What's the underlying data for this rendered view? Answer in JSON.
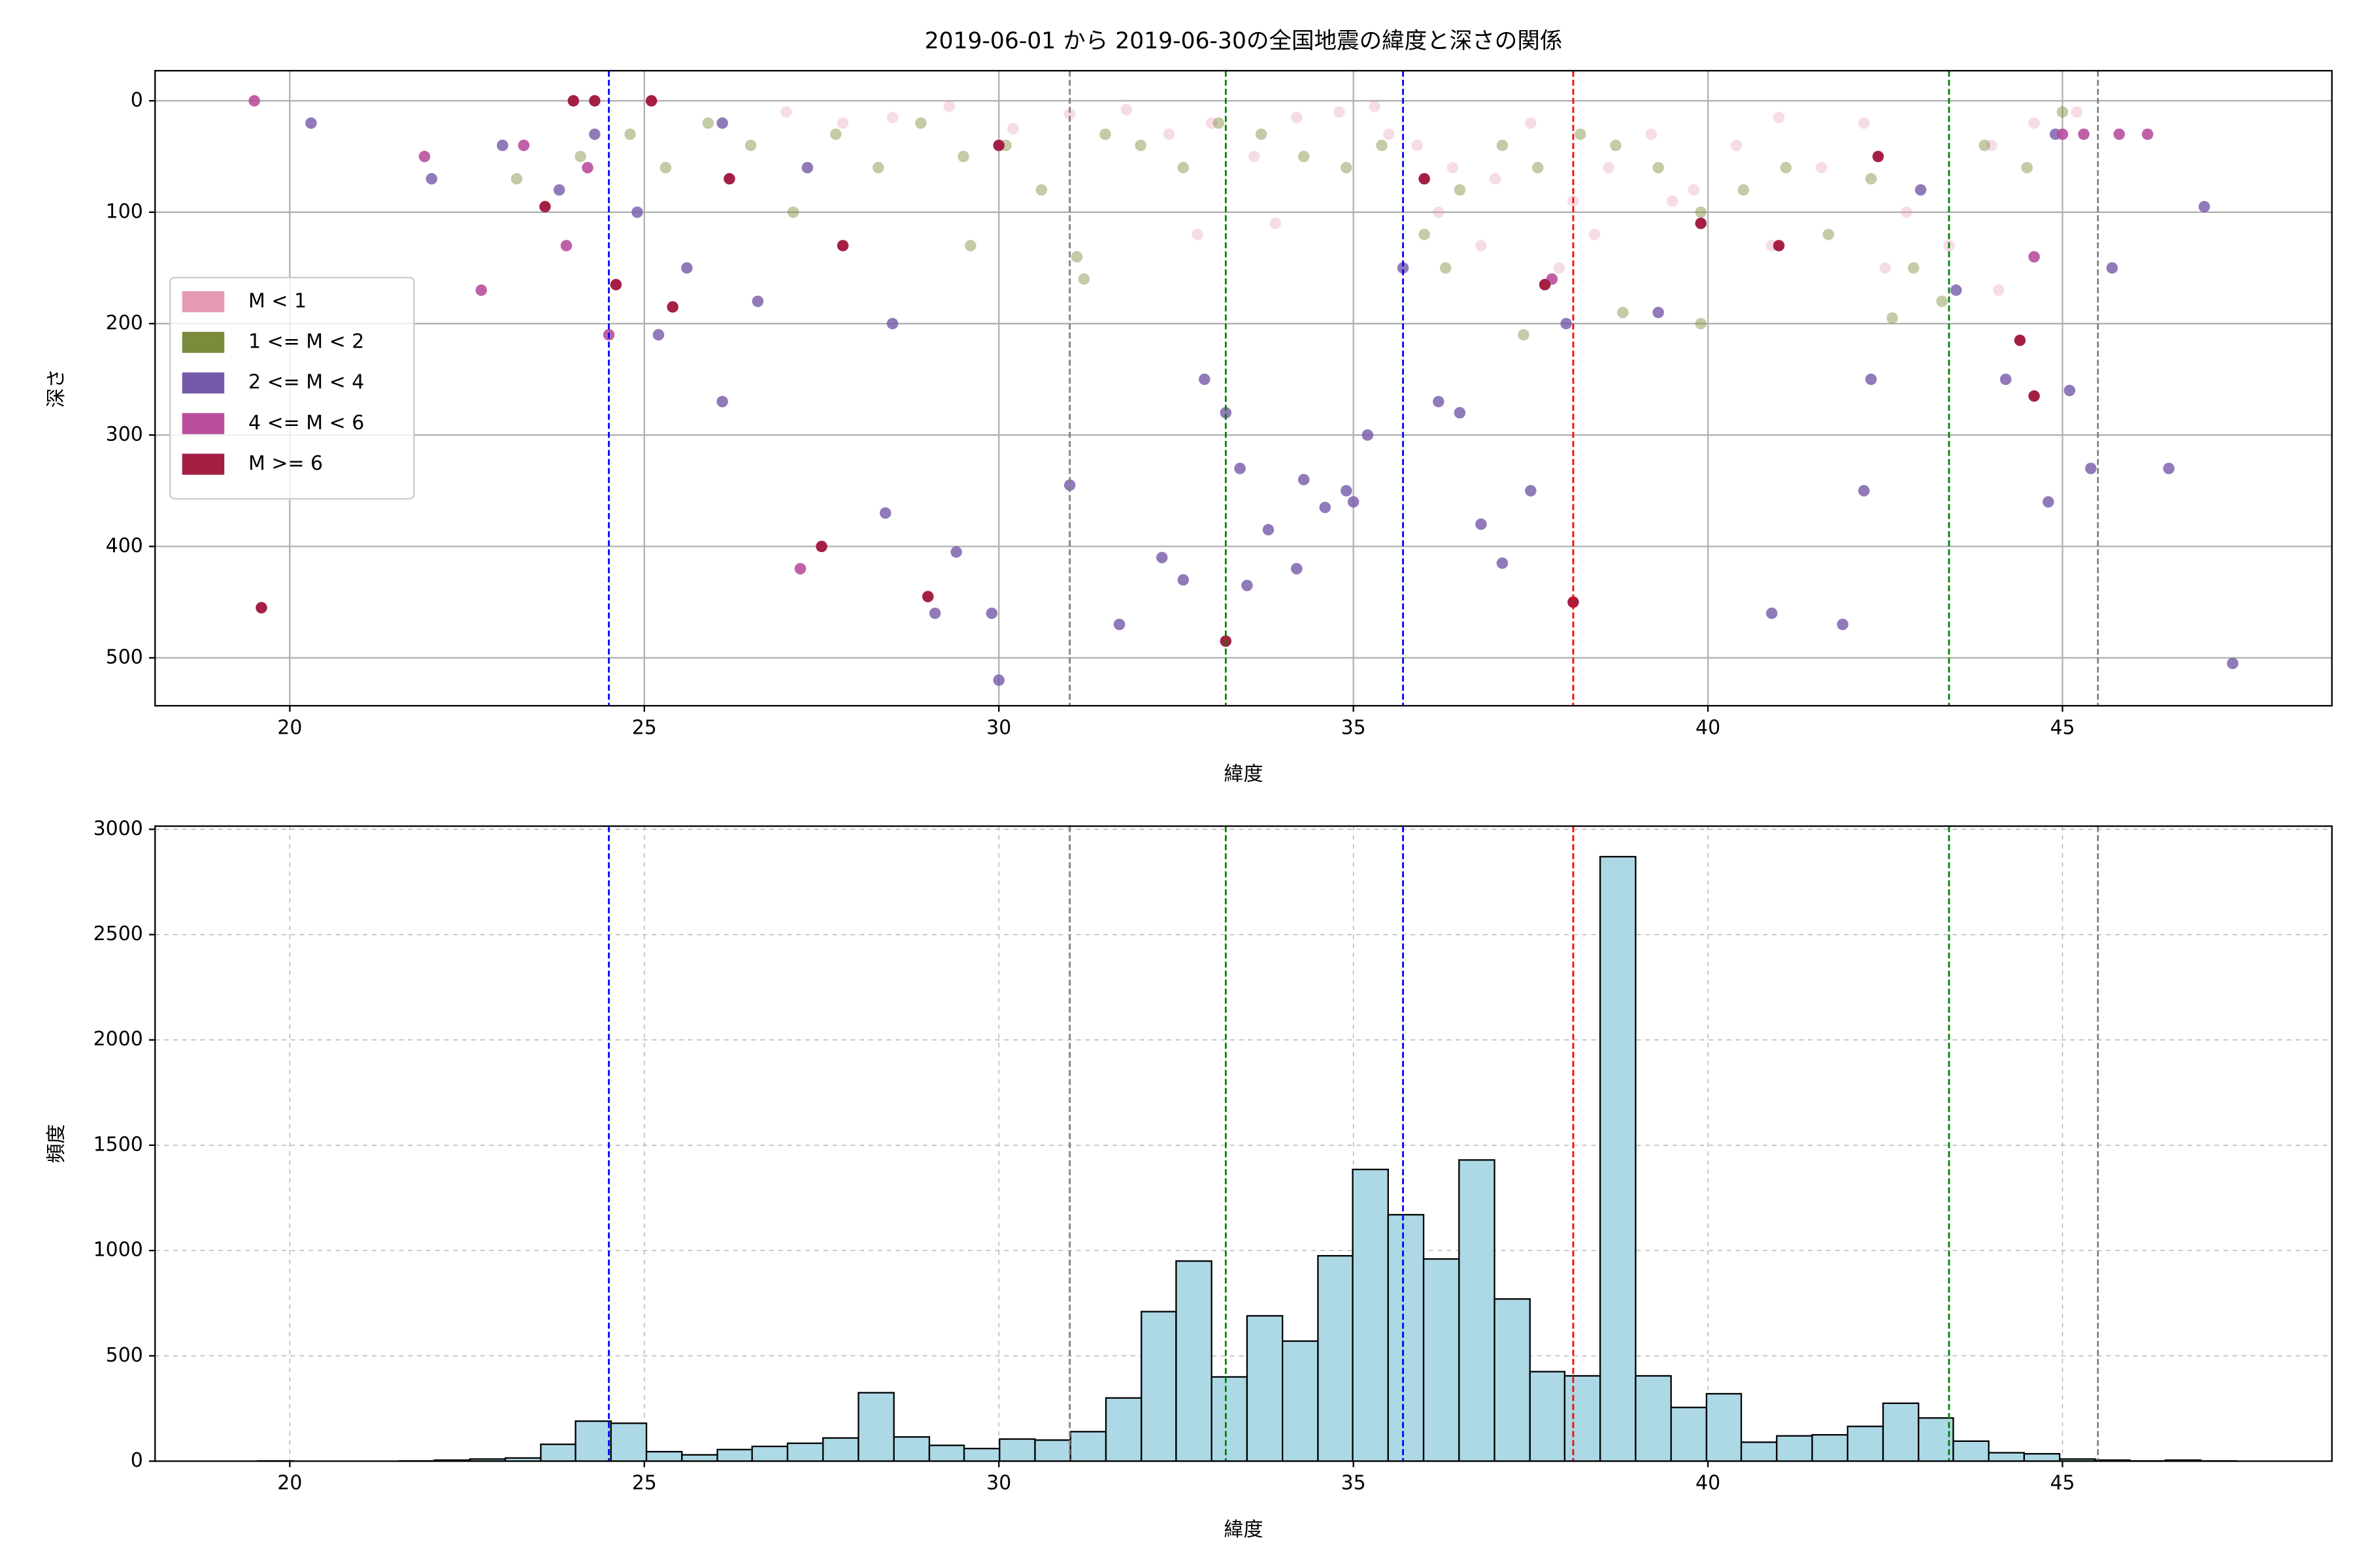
{
  "chart_data": [
    {
      "type": "scatter",
      "title": "2019-06-01 から 2019-06-30の全国地震の緯度と深さの関係",
      "xlabel": "緯度",
      "ylabel": "深さ",
      "xlim": [
        18.1,
        48.8
      ],
      "ylim": [
        543,
        -27
      ],
      "invert_y": true,
      "xticks": [
        20,
        25,
        30,
        35,
        40,
        45
      ],
      "yticks": [
        0,
        100,
        200,
        300,
        400,
        500
      ],
      "grid": true,
      "grid_style": "solid",
      "legend": "center left",
      "vlines": [
        {
          "x": 24.5,
          "color": "#0000ff"
        },
        {
          "x": 31.0,
          "color": "#808080"
        },
        {
          "x": 33.2,
          "color": "#008000"
        },
        {
          "x": 35.7,
          "color": "#0000ff"
        },
        {
          "x": 38.1,
          "color": "#ff0000"
        },
        {
          "x": 43.4,
          "color": "#008000"
        },
        {
          "x": 45.5,
          "color": "#808080"
        }
      ],
      "series": [
        {
          "name": "M < 1",
          "color": "#e59ab5",
          "alpha": 0.35,
          "x": [
            27.0,
            27.8,
            28.5,
            29.3,
            30.2,
            31.0,
            31.8,
            32.4,
            33.0,
            33.6,
            34.2,
            34.8,
            35.3,
            35.9,
            36.4,
            37.0,
            37.5,
            38.1,
            38.6,
            39.2,
            39.8,
            40.4,
            41.0,
            41.6,
            42.2,
            42.8,
            43.4,
            44.0,
            44.6,
            45.2,
            32.8,
            33.9,
            35.5,
            36.2,
            36.8,
            37.9,
            38.4,
            39.5,
            40.9,
            42.5,
            44.1
          ],
          "values": [
            10,
            20,
            15,
            5,
            25,
            12,
            8,
            30,
            20,
            50,
            15,
            10,
            5,
            40,
            60,
            70,
            20,
            90,
            60,
            30,
            80,
            40,
            15,
            60,
            20,
            100,
            130,
            40,
            20,
            10,
            120,
            110,
            30,
            100,
            130,
            150,
            120,
            90,
            130,
            150,
            170
          ]
        },
        {
          "name": "1 <= M < 2",
          "color": "#7a8c3c",
          "alpha": 0.45,
          "x": [
            23.2,
            24.1,
            24.8,
            25.3,
            25.9,
            26.5,
            27.1,
            27.7,
            28.3,
            28.9,
            29.5,
            30.1,
            30.6,
            31.1,
            31.5,
            32.0,
            32.6,
            33.1,
            33.7,
            34.3,
            34.9,
            35.4,
            36.0,
            36.5,
            37.1,
            37.6,
            38.2,
            38.7,
            39.3,
            39.9,
            40.5,
            41.1,
            41.7,
            42.3,
            42.9,
            43.3,
            43.9,
            44.5,
            45.0,
            29.6,
            31.2,
            36.3,
            37.4,
            38.8,
            39.9,
            42.6
          ],
          "values": [
            70,
            50,
            30,
            60,
            20,
            40,
            100,
            30,
            60,
            20,
            50,
            40,
            80,
            140,
            30,
            40,
            60,
            20,
            30,
            50,
            60,
            40,
            120,
            80,
            40,
            60,
            30,
            40,
            60,
            100,
            80,
            60,
            120,
            70,
            150,
            180,
            40,
            60,
            10,
            130,
            160,
            150,
            210,
            190,
            200,
            195
          ]
        },
        {
          "name": "2 <= M < 4",
          "color": "#7459a8",
          "alpha": 0.8,
          "x": [
            20.3,
            22.0,
            23.0,
            23.8,
            24.3,
            24.9,
            25.2,
            25.6,
            26.1,
            26.6,
            27.3,
            28.4,
            29.1,
            29.4,
            30.0,
            31.0,
            31.7,
            32.3,
            32.6,
            32.9,
            33.2,
            33.4,
            33.8,
            34.2,
            34.6,
            34.9,
            35.2,
            35.7,
            36.2,
            36.5,
            37.1,
            37.5,
            38.0,
            39.3,
            40.9,
            41.9,
            42.3,
            43.0,
            43.5,
            44.2,
            44.9,
            45.1,
            45.7,
            46.5,
            47.0,
            47.4,
            26.1,
            28.5,
            29.9,
            33.5,
            34.3,
            35.0,
            36.8,
            42.2,
            44.8,
            45.4
          ],
          "values": [
            20,
            70,
            40,
            80,
            30,
            100,
            210,
            150,
            270,
            180,
            60,
            370,
            460,
            405,
            520,
            345,
            470,
            410,
            430,
            250,
            280,
            330,
            385,
            420,
            365,
            350,
            300,
            150,
            270,
            280,
            415,
            350,
            200,
            190,
            460,
            470,
            250,
            80,
            170,
            250,
            30,
            260,
            150,
            330,
            95,
            505,
            20,
            200,
            460,
            435,
            340,
            360,
            380,
            350,
            360,
            330
          ]
        },
        {
          "name": "4 <= M < 6",
          "color": "#b94f9e",
          "alpha": 0.9,
          "x": [
            19.5,
            21.9,
            22.7,
            23.3,
            23.9,
            24.5,
            27.2,
            37.8,
            44.6,
            45.0,
            45.3,
            45.8,
            46.2,
            24.2
          ],
          "values": [
            0,
            50,
            170,
            40,
            130,
            210,
            420,
            160,
            140,
            30,
            30,
            30,
            30,
            60
          ]
        },
        {
          "name": "M >= 6",
          "color": "#a51f45",
          "alpha": 1,
          "x": [
            19.6,
            23.6,
            24.0,
            24.6,
            25.1,
            25.4,
            26.2,
            27.5,
            27.8,
            29.0,
            30.0,
            33.2,
            36.0,
            37.7,
            38.1,
            39.9,
            41.0,
            42.4,
            44.4,
            44.6,
            24.3
          ],
          "values": [
            455,
            95,
            0,
            165,
            0,
            185,
            70,
            400,
            130,
            445,
            40,
            485,
            70,
            165,
            450,
            110,
            130,
            50,
            215,
            265,
            0
          ]
        }
      ]
    },
    {
      "type": "histogram",
      "xlabel": "緯度",
      "ylabel": "頻度",
      "color": "#add8e6",
      "edgecolor": "#000000",
      "xlim": [
        18.1,
        48.8
      ],
      "ylim": [
        0,
        3015
      ],
      "xticks": [
        20,
        25,
        30,
        35,
        40,
        45
      ],
      "yticks": [
        0,
        500,
        1000,
        1500,
        2000,
        2500,
        3000
      ],
      "grid": true,
      "grid_style": "dashed",
      "vlines": [
        {
          "x": 24.5,
          "color": "#0000ff"
        },
        {
          "x": 31.0,
          "color": "#808080"
        },
        {
          "x": 33.2,
          "color": "#008000"
        },
        {
          "x": 35.7,
          "color": "#0000ff"
        },
        {
          "x": 38.1,
          "color": "#ff0000"
        },
        {
          "x": 43.4,
          "color": "#008000"
        },
        {
          "x": 45.5,
          "color": "#808080"
        }
      ],
      "bins": [
        19.55,
        20.05,
        20.55,
        21.04,
        21.54,
        22.04,
        22.54,
        23.04,
        23.54,
        24.03,
        24.53,
        25.03,
        25.53,
        26.03,
        26.52,
        27.02,
        27.52,
        28.02,
        28.52,
        29.02,
        29.51,
        30.01,
        30.51,
        31.01,
        31.51,
        32.01,
        32.5,
        33.0,
        33.5,
        34.0,
        34.5,
        34.99,
        35.49,
        35.99,
        36.49,
        36.99,
        37.49,
        37.98,
        38.48,
        38.98,
        39.48,
        39.98,
        40.47,
        40.97,
        41.47,
        41.97,
        42.47,
        42.97,
        43.46,
        43.96,
        44.46,
        44.96,
        45.46,
        45.95,
        46.45,
        46.95,
        47.45
      ],
      "values": [
        1,
        0,
        0,
        0,
        1,
        5,
        10,
        15,
        80,
        190,
        180,
        45,
        30,
        55,
        70,
        85,
        110,
        325,
        115,
        75,
        60,
        105,
        100,
        140,
        300,
        710,
        950,
        400,
        690,
        570,
        975,
        1385,
        1170,
        960,
        1430,
        770,
        425,
        405,
        2870,
        405,
        255,
        320,
        90,
        120,
        125,
        165,
        275,
        205,
        95,
        40,
        35,
        10,
        5,
        1,
        5,
        1
      ]
    }
  ]
}
